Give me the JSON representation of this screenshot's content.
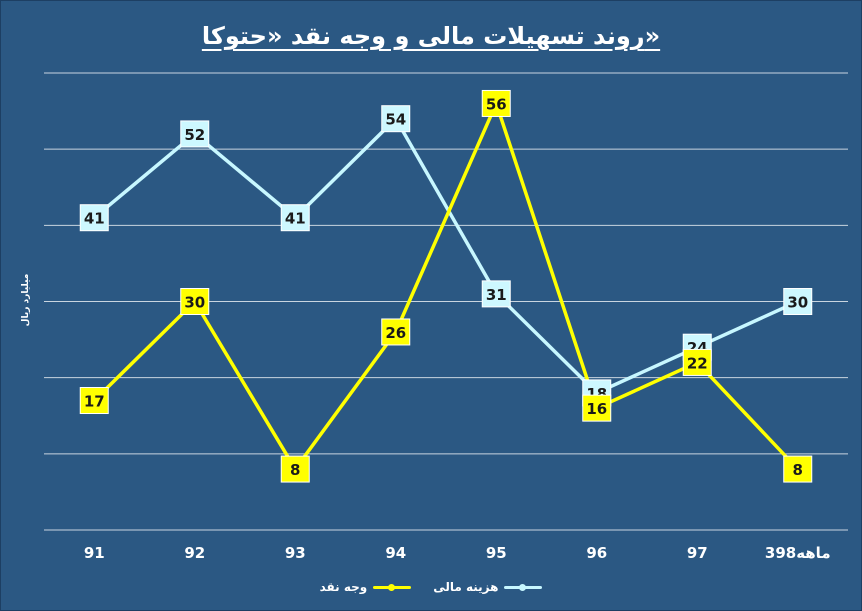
{
  "chart_data": {
    "type": "line",
    "title": "روند تسهیلات مالی و وجه نقد «حتوکا»",
    "ylabel": "میلیارد ریال",
    "xlabel": "",
    "categories": [
      "91",
      "92",
      "93",
      "94",
      "95",
      "96",
      "97",
      "3ماهه98"
    ],
    "ylim": [
      0,
      60
    ],
    "grid": true,
    "legend_position": "bottom",
    "series": [
      {
        "name": "هزینه مالی",
        "values": [
          41,
          52,
          41,
          54,
          31,
          18,
          24,
          30
        ],
        "color": "#c7f7ff",
        "label_bg": "#cdf8ff"
      },
      {
        "name": "وجه نقد",
        "values": [
          17,
          30,
          8,
          26,
          56,
          16,
          22,
          8
        ],
        "color": "#ffff00",
        "label_bg": "#ffff00"
      }
    ]
  },
  "colors": {
    "background": "#2b5883",
    "gridline": "#ffffff",
    "label_text": "#1a1a1a"
  }
}
